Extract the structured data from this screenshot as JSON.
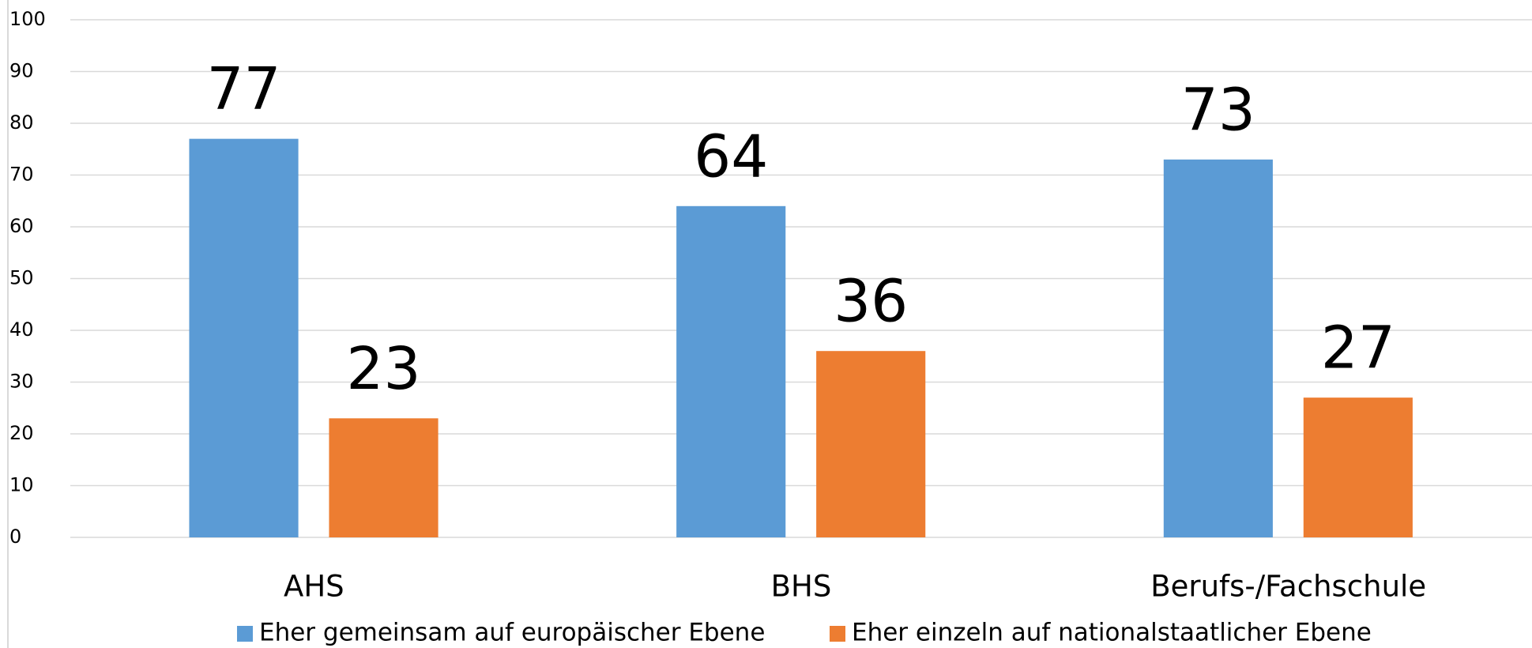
{
  "chart_data": {
    "type": "bar",
    "categories": [
      "AHS",
      "BHS",
      "Berufs-/Fachschule"
    ],
    "series": [
      {
        "name": "Eher gemeinsam auf europäischer Ebene",
        "color": "#5b9bd5",
        "values": [
          77,
          64,
          73
        ]
      },
      {
        "name": "Eher einzeln auf nationalstaatlicher Ebene",
        "color": "#ed7d31",
        "values": [
          23,
          36,
          27
        ]
      }
    ],
    "ylim": [
      0,
      100
    ],
    "yticks": [
      0,
      10,
      20,
      30,
      40,
      50,
      60,
      70,
      80,
      90,
      100
    ],
    "grid": true,
    "legend": "bottom"
  }
}
